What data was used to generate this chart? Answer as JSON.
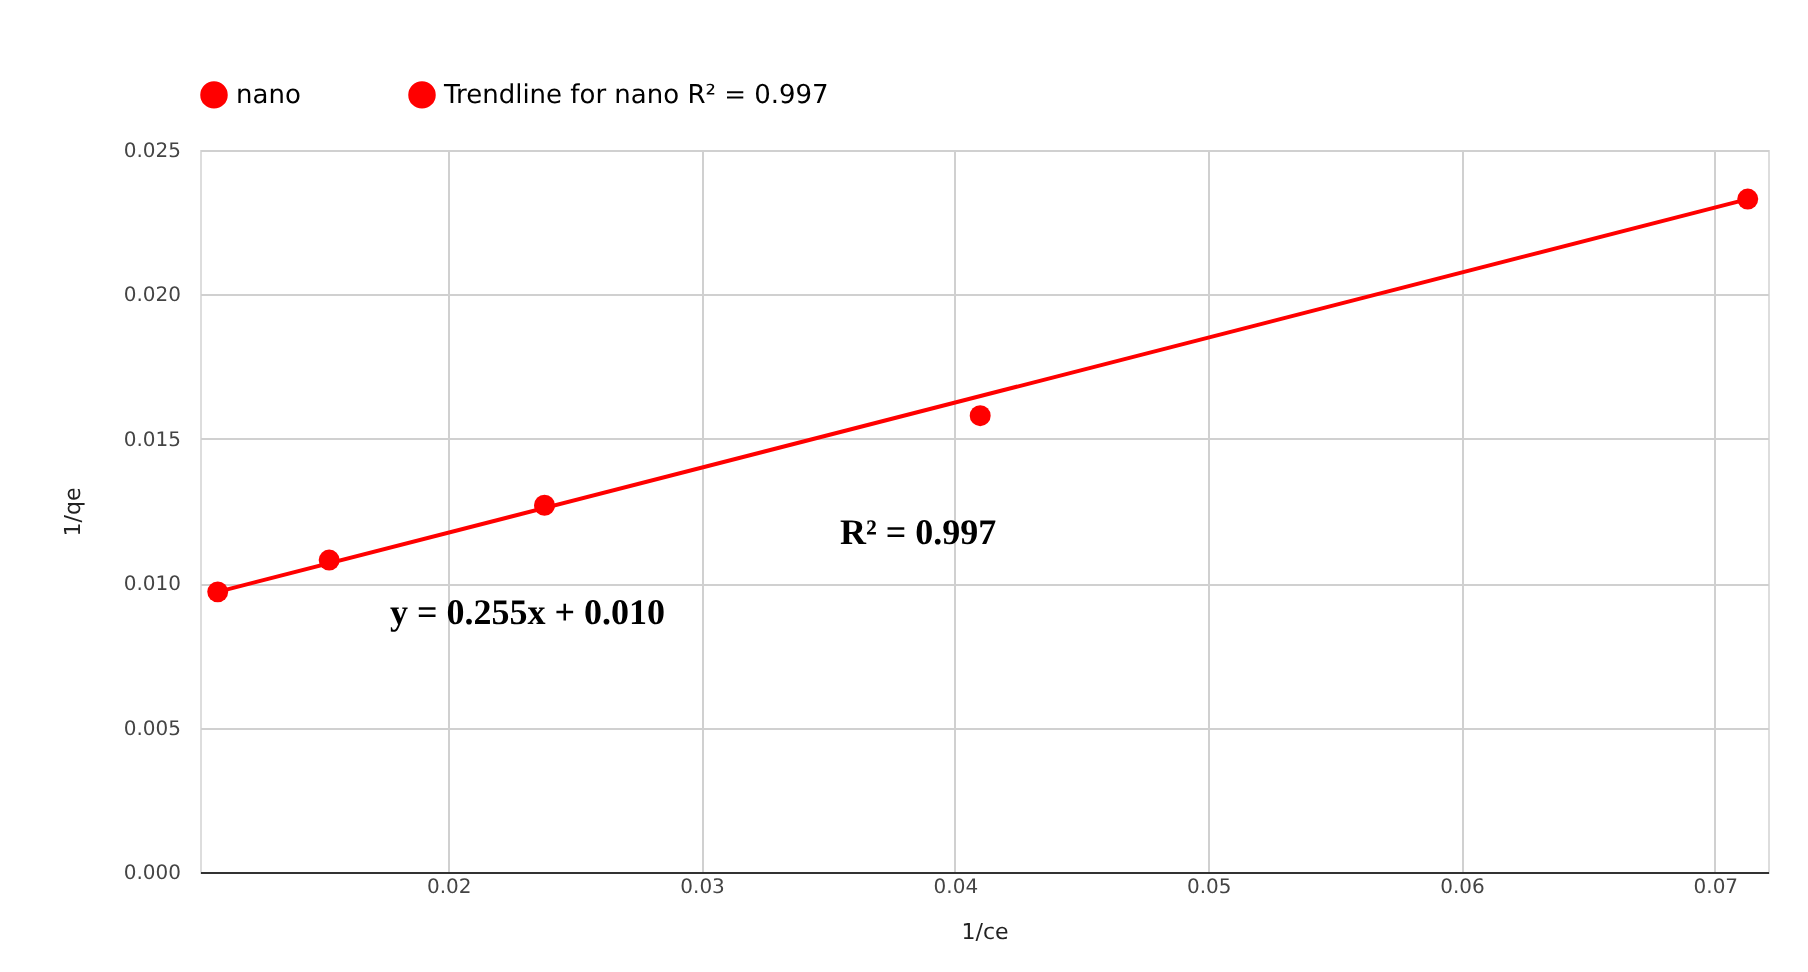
{
  "chart_data": {
    "type": "scatter",
    "xlabel": "1/ce",
    "ylabel": "1/qe",
    "x": [
      0.0109,
      0.0153,
      0.0238,
      0.041,
      0.0713
    ],
    "series": [
      {
        "name": "nano",
        "color": "#ff0000",
        "values": [
          0.0097,
          0.0108,
          0.0127,
          0.0158,
          0.0233
        ],
        "marker": "circle"
      },
      {
        "name": "Trendline for nano R² = 0.997",
        "type": "line",
        "color": "#ff0000",
        "x": [
          0.0109,
          0.0713
        ],
        "values": [
          0.0097,
          0.0233
        ],
        "marker": "none"
      }
    ],
    "xlim": [
      0.0102,
      0.0721
    ],
    "xticks": [
      0.02,
      0.03,
      0.04,
      0.05,
      0.06,
      0.07
    ],
    "ylim": [
      0,
      0.025
    ],
    "yticks": [
      {
        "value": 0,
        "label": "0.000"
      },
      {
        "value": 0.005,
        "label": "0.005"
      },
      {
        "value": 0.01,
        "label": "0.010"
      },
      {
        "value": 0.015,
        "label": "0.015"
      },
      {
        "value": 0.02,
        "label": "0.020"
      },
      {
        "value": 0.025,
        "label": "0.025"
      }
    ],
    "grid": true,
    "legend": "top",
    "annotations": [
      "R² = 0.997",
      "y = 0.255x + 0.010"
    ]
  }
}
